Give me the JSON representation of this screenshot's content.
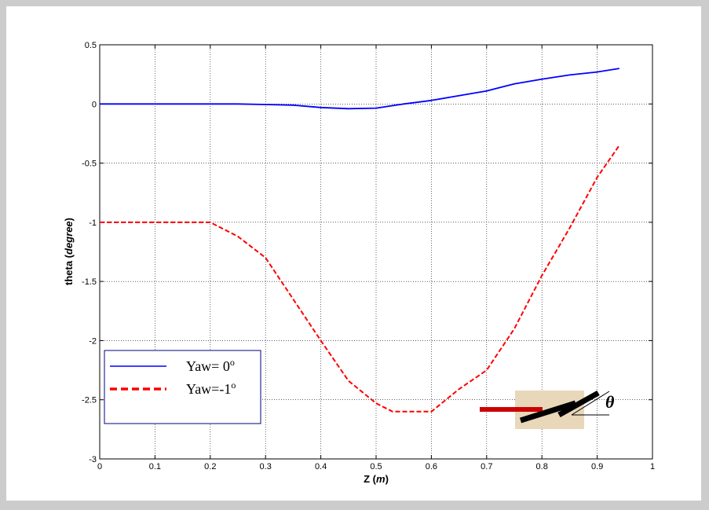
{
  "chart_data": {
    "type": "line",
    "xlabel": "Z",
    "xlabel_unit": "m",
    "ylabel": "theta",
    "ylabel_unit": "degree",
    "xlim": [
      0,
      1
    ],
    "ylim": [
      -3,
      0.5
    ],
    "xticks": [
      "0",
      "0.1",
      "0.2",
      "0.3",
      "0.4",
      "0.5",
      "0.6",
      "0.7",
      "0.8",
      "0.9",
      "1"
    ],
    "yticks": [
      "0.5",
      "0",
      "-0.5",
      "-1",
      "-1.5",
      "-2",
      "-2.5",
      "-3"
    ],
    "grid": true,
    "legend_position": "lower-left",
    "series": [
      {
        "label_main": "Yaw= 0",
        "label_sup": "o",
        "color": "#0000ff",
        "style": "solid",
        "x": [
          0,
          0.1,
          0.2,
          0.25,
          0.3,
          0.35,
          0.4,
          0.45,
          0.5,
          0.55,
          0.6,
          0.65,
          0.7,
          0.75,
          0.8,
          0.85,
          0.9,
          0.94
        ],
        "y": [
          0,
          0,
          0,
          0,
          -0.005,
          -0.01,
          -0.03,
          -0.04,
          -0.035,
          0,
          0.03,
          0.07,
          0.11,
          0.17,
          0.21,
          0.245,
          0.27,
          0.3
        ]
      },
      {
        "label_main": "Yaw=-1",
        "label_sup": "o",
        "color": "#ff0000",
        "style": "dashed",
        "x": [
          0,
          0.1,
          0.2,
          0.25,
          0.3,
          0.35,
          0.4,
          0.45,
          0.5,
          0.53,
          0.57,
          0.6,
          0.65,
          0.7,
          0.75,
          0.8,
          0.85,
          0.9,
          0.94
        ],
        "y": [
          -1,
          -1,
          -1,
          -1.12,
          -1.3,
          -1.65,
          -2.0,
          -2.34,
          -2.53,
          -2.6,
          -2.6,
          -2.6,
          -2.41,
          -2.25,
          -1.9,
          -1.45,
          -1.05,
          -0.62,
          -0.35
        ]
      }
    ],
    "inset_symbol": "θ"
  }
}
